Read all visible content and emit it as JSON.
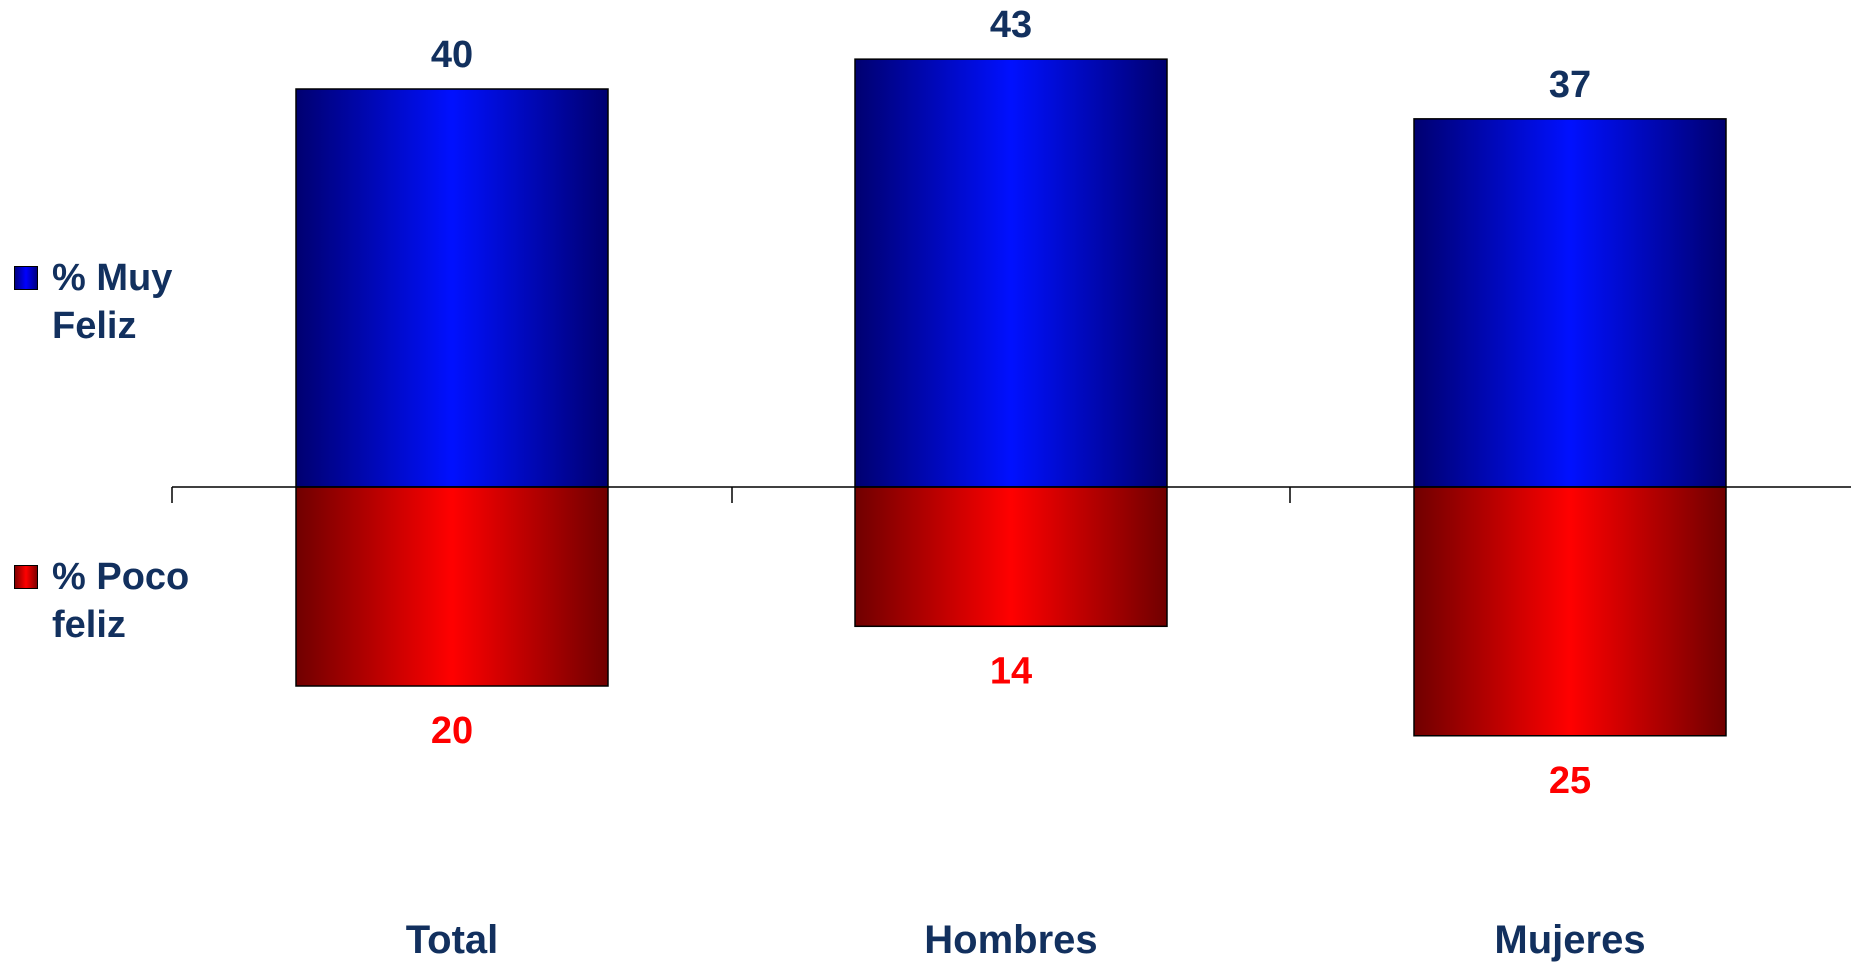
{
  "chart_data": {
    "type": "bar",
    "stacked_diverging": true,
    "categories": [
      "Total",
      "Hombres",
      "Mujeres"
    ],
    "series": [
      {
        "name": "% Muy Feliz",
        "values": [
          40,
          43,
          37
        ],
        "color": "#0000ff",
        "label_color": "#12305e"
      },
      {
        "name": "% Poco feliz",
        "values": [
          20,
          14,
          25
        ],
        "color": "#ff0000",
        "label_color": "#ff0000"
      }
    ],
    "title": "",
    "xlabel": "",
    "ylabel": "",
    "ylim": [
      -25,
      43
    ],
    "grid": false,
    "legend_position": "left",
    "tick_label_color": "#12305e"
  },
  "legend": {
    "muy_feliz": [
      "% Muy",
      "Feliz"
    ],
    "poco_feliz": [
      "% Poco",
      "feliz"
    ]
  }
}
